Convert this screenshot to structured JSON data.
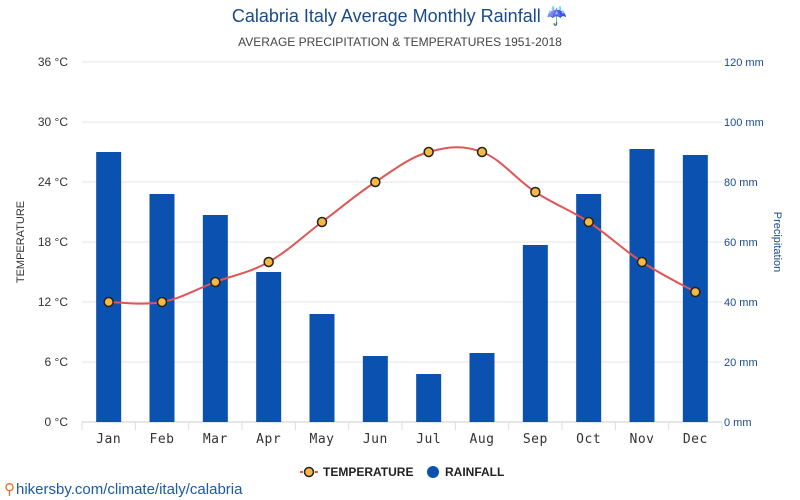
{
  "chart_data": {
    "type": "bar+line",
    "title": "Calabria Italy Average Monthly Rainfall ☔",
    "subtitle": "AVERAGE PRECIPITATION & TEMPERATURES 1951-2018",
    "categories": [
      "Jan",
      "Feb",
      "Mar",
      "Apr",
      "May",
      "Jun",
      "Jul",
      "Aug",
      "Sep",
      "Oct",
      "Nov",
      "Dec"
    ],
    "series": [
      {
        "name": "RAINFALL",
        "type": "bar",
        "axis": "right",
        "color": "#0b52b0",
        "values": [
          90,
          76,
          69,
          50,
          36,
          22,
          16,
          23,
          59,
          76,
          91,
          89
        ]
      },
      {
        "name": "TEMPERATURE",
        "type": "line",
        "axis": "left",
        "color": "#e05555",
        "marker_fill": "#f5b942",
        "values": [
          12,
          12,
          14,
          16,
          20,
          24,
          27,
          27,
          23,
          20,
          16,
          13
        ]
      }
    ],
    "ylabel": "TEMPERATURE",
    "y2label": "Precipitation",
    "ylim": [
      0,
      36
    ],
    "y2lim": [
      0,
      120
    ],
    "yticks": [
      "0 °C",
      "6 °C",
      "12 °C",
      "18 °C",
      "24 °C",
      "30 °C",
      "36 °C"
    ],
    "y2ticks": [
      "0 mm",
      "20 mm",
      "40 mm",
      "60 mm",
      "80 mm",
      "100 mm",
      "120 mm"
    ],
    "grid": true,
    "legend_position": "bottom-center"
  },
  "footer": {
    "pin_icon": "location-pin-icon",
    "text": "hikersby.com/climate/italy/calabria"
  }
}
